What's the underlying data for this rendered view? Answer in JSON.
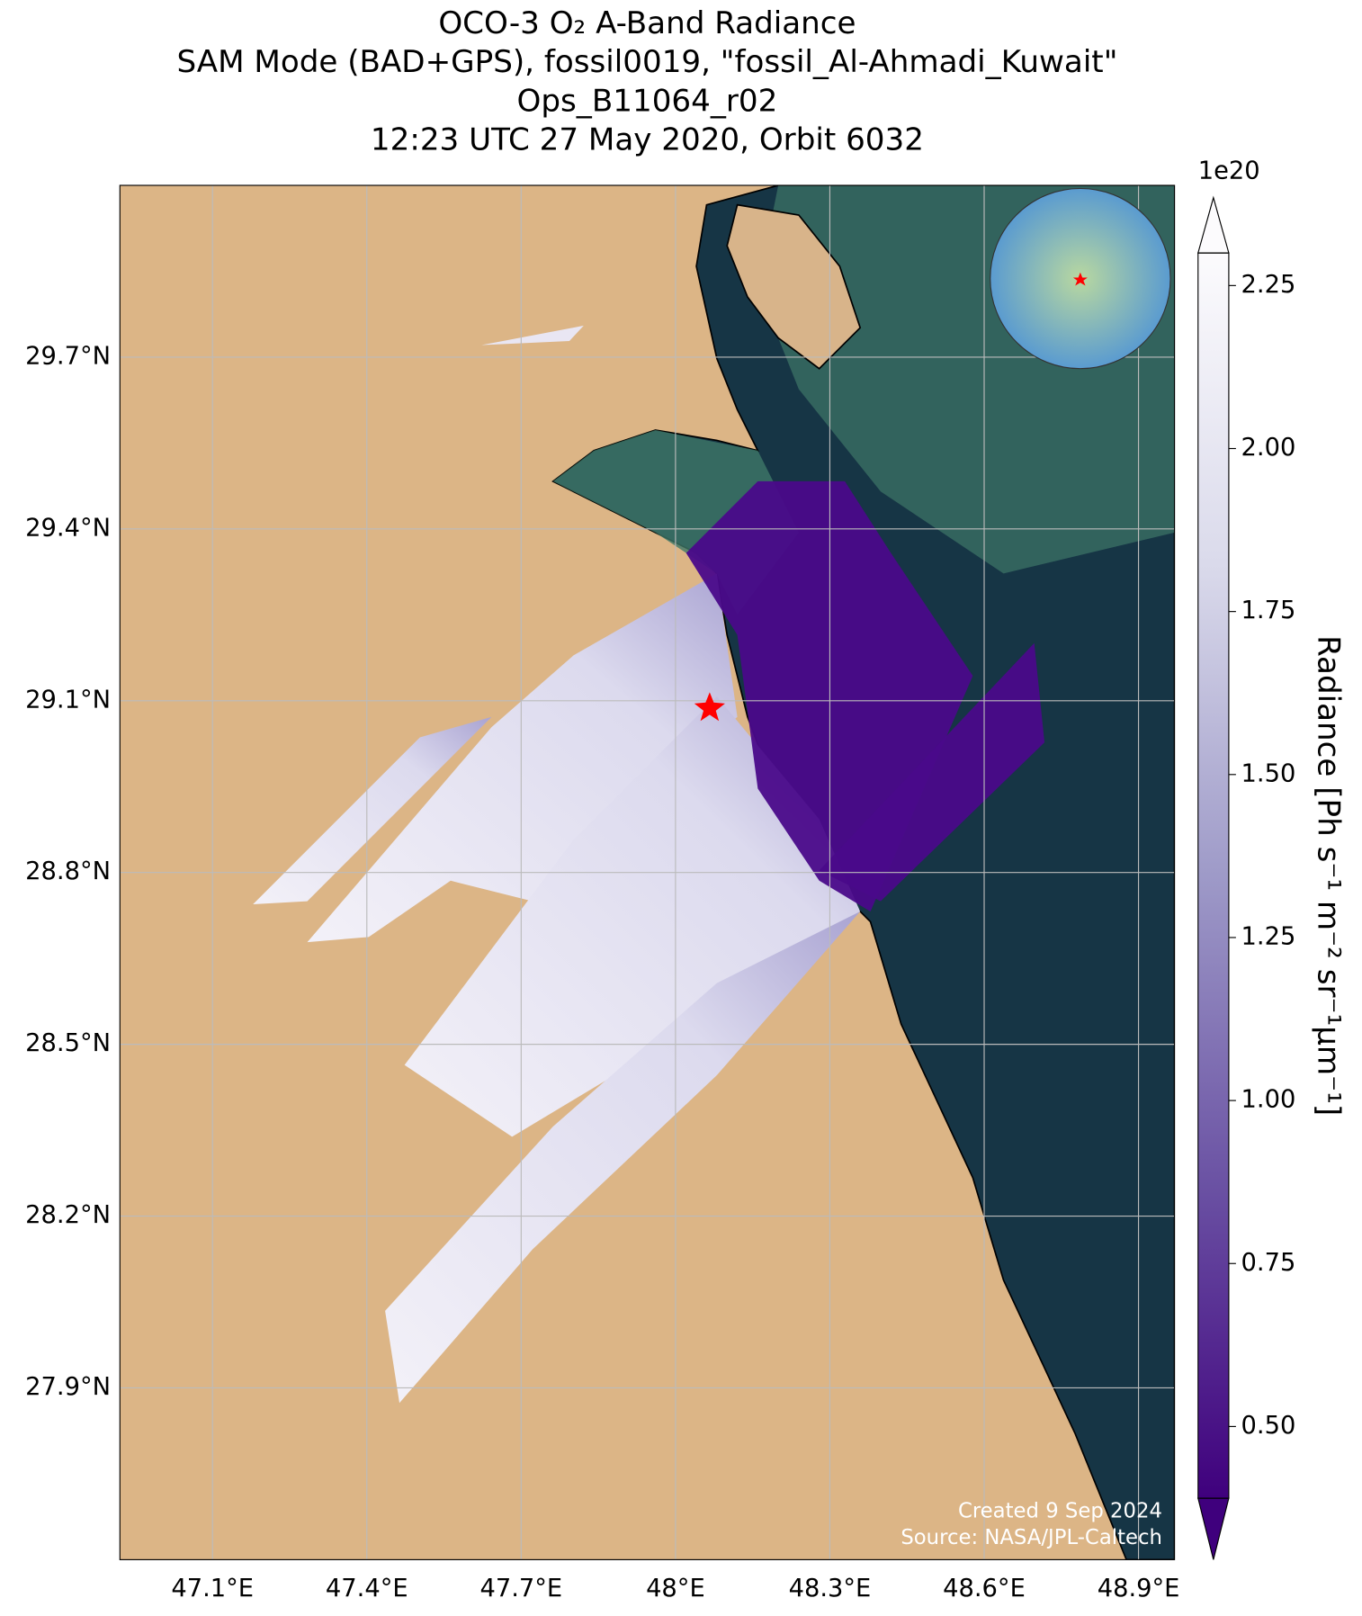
{
  "chart_data": {
    "type": "map",
    "title": [
      "OCO-3 O₂ A-Band Radiance",
      "SAM Mode (BAD+GPS), fossil0019, \"fossil_Al-Ahmadi_Kuwait\"",
      "Ops_B11064_r02",
      "12:23 UTC 27 May 2020, Orbit 6032"
    ],
    "xlim": [
      46.92,
      48.97
    ],
    "ylim": [
      27.6,
      30.0
    ],
    "xticks": [
      {
        "value": 47.1,
        "label": "47.1°E"
      },
      {
        "value": 47.4,
        "label": "47.4°E"
      },
      {
        "value": 47.7,
        "label": "47.7°E"
      },
      {
        "value": 48.0,
        "label": "48°E"
      },
      {
        "value": 48.3,
        "label": "48.3°E"
      },
      {
        "value": 48.6,
        "label": "48.6°E"
      },
      {
        "value": 48.9,
        "label": "48.9°E"
      }
    ],
    "yticks": [
      {
        "value": 27.9,
        "label": "27.9°N"
      },
      {
        "value": 28.2,
        "label": "28.2°N"
      },
      {
        "value": 28.5,
        "label": "28.5°N"
      },
      {
        "value": 28.8,
        "label": "28.8°N"
      },
      {
        "value": 29.1,
        "label": "29.1°N"
      },
      {
        "value": 29.4,
        "label": "29.4°N"
      },
      {
        "value": 29.7,
        "label": "29.7°N"
      }
    ],
    "grid": true,
    "colorbar": {
      "label": "Radiance [Ph s⁻¹ m⁻² sr⁻¹μm⁻¹]",
      "offset_label": "1e20",
      "clim": [
        0.39,
        2.3
      ],
      "ticks": [
        {
          "value": 0.5,
          "label": "0.50"
        },
        {
          "value": 0.75,
          "label": "0.75"
        },
        {
          "value": 1.0,
          "label": "1.00"
        },
        {
          "value": 1.25,
          "label": "1.25"
        },
        {
          "value": 1.5,
          "label": "1.50"
        },
        {
          "value": 1.75,
          "label": "1.75"
        },
        {
          "value": 2.0,
          "label": "2.00"
        },
        {
          "value": 2.25,
          "label": "2.25"
        }
      ]
    },
    "credits": [
      "Created 9 Sep 2024",
      "Source: NASA/JPL-Caltech"
    ]
  }
}
